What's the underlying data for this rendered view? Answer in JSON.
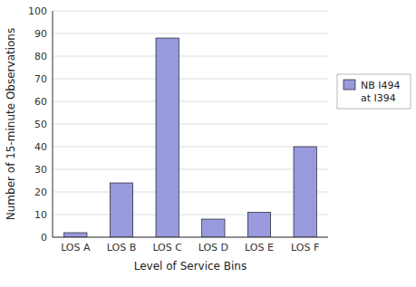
{
  "chart_data": {
    "type": "bar",
    "categories": [
      "LOS A",
      "LOS B",
      "LOS C",
      "LOS D",
      "LOS E",
      "LOS F"
    ],
    "series": [
      {
        "name": "NB I494\nat I394",
        "color": "#9999dd",
        "values": [
          2,
          24,
          88,
          8,
          11,
          40
        ]
      }
    ],
    "xlabel": "Level of Service Bins",
    "ylabel": "Number of 15-minute Observations",
    "ylim": [
      0,
      100
    ],
    "yticks": [
      0,
      10,
      20,
      30,
      40,
      50,
      60,
      70,
      80,
      90,
      100
    ],
    "grid": true,
    "legend": "right"
  }
}
